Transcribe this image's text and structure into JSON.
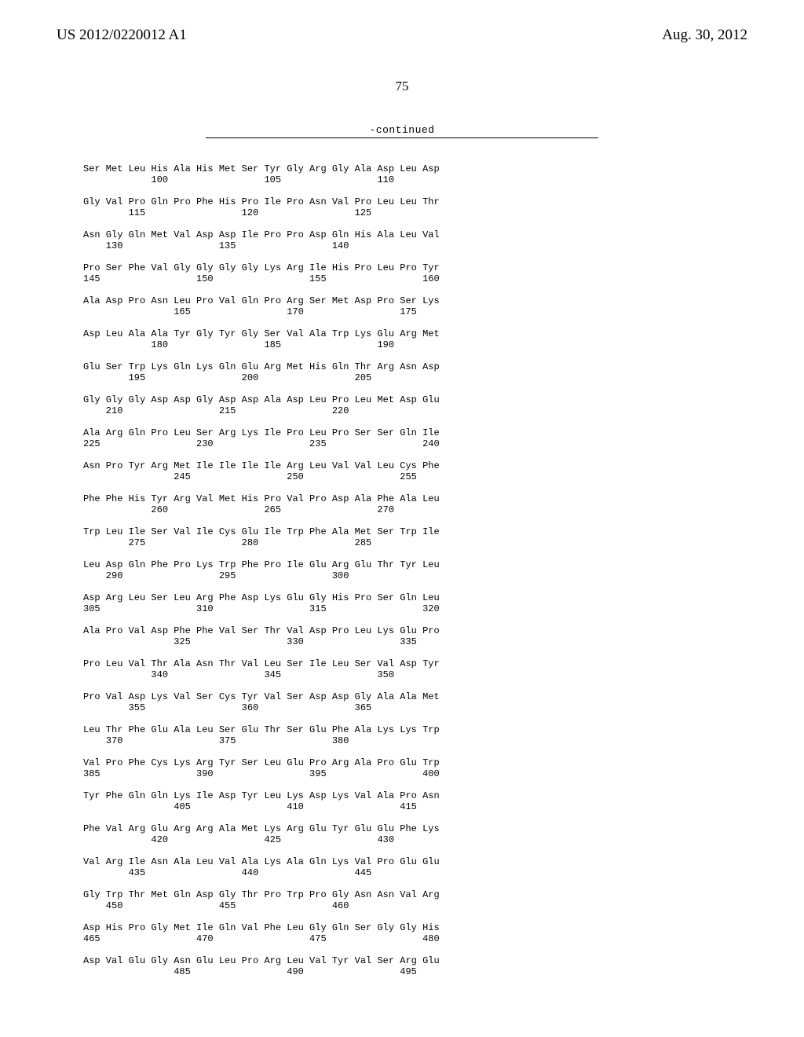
{
  "header": {
    "pub_number": "US 2012/0220012 A1",
    "pub_date": "Aug. 30, 2012"
  },
  "page_number": "75",
  "continued_label": "-continued",
  "sequence_text": "Ser Met Leu His Ala His Met Ser Tyr Gly Arg Gly Ala Asp Leu Asp\n            100                 105                 110\n\nGly Val Pro Gln Pro Phe His Pro Ile Pro Asn Val Pro Leu Leu Thr\n        115                 120                 125\n\nAsn Gly Gln Met Val Asp Asp Ile Pro Pro Asp Gln His Ala Leu Val\n    130                 135                 140\n\nPro Ser Phe Val Gly Gly Gly Gly Lys Arg Ile His Pro Leu Pro Tyr\n145                 150                 155                 160\n\nAla Asp Pro Asn Leu Pro Val Gln Pro Arg Ser Met Asp Pro Ser Lys\n                165                 170                 175\n\nAsp Leu Ala Ala Tyr Gly Tyr Gly Ser Val Ala Trp Lys Glu Arg Met\n            180                 185                 190\n\nGlu Ser Trp Lys Gln Lys Gln Glu Arg Met His Gln Thr Arg Asn Asp\n        195                 200                 205\n\nGly Gly Gly Asp Asp Gly Asp Asp Ala Asp Leu Pro Leu Met Asp Glu\n    210                 215                 220\n\nAla Arg Gln Pro Leu Ser Arg Lys Ile Pro Leu Pro Ser Ser Gln Ile\n225                 230                 235                 240\n\nAsn Pro Tyr Arg Met Ile Ile Ile Ile Arg Leu Val Val Leu Cys Phe\n                245                 250                 255\n\nPhe Phe His Tyr Arg Val Met His Pro Val Pro Asp Ala Phe Ala Leu\n            260                 265                 270\n\nTrp Leu Ile Ser Val Ile Cys Glu Ile Trp Phe Ala Met Ser Trp Ile\n        275                 280                 285\n\nLeu Asp Gln Phe Pro Lys Trp Phe Pro Ile Glu Arg Glu Thr Tyr Leu\n    290                 295                 300\n\nAsp Arg Leu Ser Leu Arg Phe Asp Lys Glu Gly His Pro Ser Gln Leu\n305                 310                 315                 320\n\nAla Pro Val Asp Phe Phe Val Ser Thr Val Asp Pro Leu Lys Glu Pro\n                325                 330                 335\n\nPro Leu Val Thr Ala Asn Thr Val Leu Ser Ile Leu Ser Val Asp Tyr\n            340                 345                 350\n\nPro Val Asp Lys Val Ser Cys Tyr Val Ser Asp Asp Gly Ala Ala Met\n        355                 360                 365\n\nLeu Thr Phe Glu Ala Leu Ser Glu Thr Ser Glu Phe Ala Lys Lys Trp\n    370                 375                 380\n\nVal Pro Phe Cys Lys Arg Tyr Ser Leu Glu Pro Arg Ala Pro Glu Trp\n385                 390                 395                 400\n\nTyr Phe Gln Gln Lys Ile Asp Tyr Leu Lys Asp Lys Val Ala Pro Asn\n                405                 410                 415\n\nPhe Val Arg Glu Arg Arg Ala Met Lys Arg Glu Tyr Glu Glu Phe Lys\n            420                 425                 430\n\nVal Arg Ile Asn Ala Leu Val Ala Lys Ala Gln Lys Val Pro Glu Glu\n        435                 440                 445\n\nGly Trp Thr Met Gln Asp Gly Thr Pro Trp Pro Gly Asn Asn Val Arg\n    450                 455                 460\n\nAsp His Pro Gly Met Ile Gln Val Phe Leu Gly Gln Ser Gly Gly His\n465                 470                 475                 480\n\nAsp Val Glu Gly Asn Glu Leu Pro Arg Leu Val Tyr Val Ser Arg Glu\n                485                 490                 495"
}
